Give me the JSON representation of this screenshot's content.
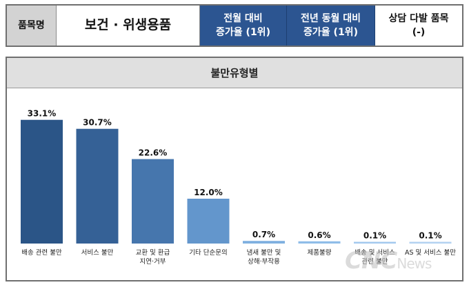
{
  "header": {
    "item_label": "품목명",
    "item_value": "보건 · 위생용품",
    "monthly_line1": "전월 대비",
    "monthly_line2": "증가율 (1위)",
    "yearly_line1": "전년 동월 대비",
    "yearly_line2": "증가율 (1위)",
    "frequent_line1": "상담 다발 품목",
    "frequent_line2": "(-)"
  },
  "watermark": {
    "main": "CNC",
    "sub": "News"
  },
  "chart_data": {
    "type": "bar",
    "title": "불만유형별",
    "categories": [
      [
        "배송 관련 불만"
      ],
      [
        "서비스 불만"
      ],
      [
        "교환 및 환급",
        "지연·거부"
      ],
      [
        "기타 단순문의"
      ],
      [
        "냄새 불만 및",
        "상해·부작용"
      ],
      [
        "제품불량"
      ],
      [
        "배송 및 서비스",
        "관련 불만"
      ],
      [
        "AS 및 서비스 불만"
      ]
    ],
    "values": [
      33.1,
      30.7,
      22.6,
      12.0,
      0.7,
      0.6,
      0.1,
      0.1
    ],
    "value_labels": [
      "33.1%",
      "30.7%",
      "22.6%",
      "12.0%",
      "0.7%",
      "0.6%",
      "0.1%",
      "0.1%"
    ],
    "ylim": [
      0,
      36
    ],
    "grid": false,
    "colors": [
      "#2b5587",
      "#356196",
      "#4676ad",
      "#6396cc",
      "#7fb0e0",
      "#8fbde8",
      "#a3c9ee",
      "#b3d2f1"
    ]
  }
}
